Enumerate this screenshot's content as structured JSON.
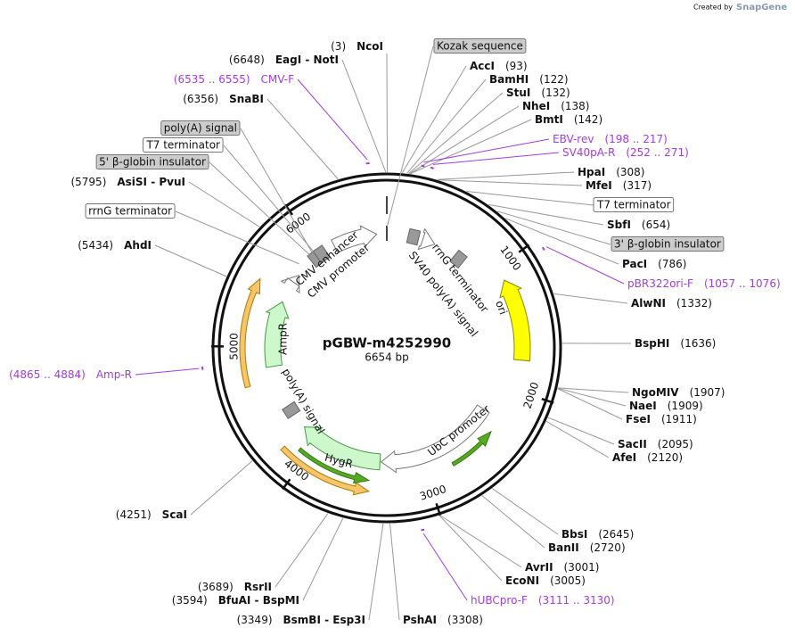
{
  "title": "pGBW-m4252990",
  "length": {
    "value": 6654,
    "label": "6654 bp"
  },
  "watermark": {
    "prefix": "Created by",
    "brand": "SnapGene"
  },
  "ring_ticks": [
    1000,
    2000,
    3000,
    4000,
    5000,
    6000
  ],
  "sites": [
    {
      "name": "NcoI",
      "position": {
        "value": 3,
        "label": "(3)"
      }
    },
    {
      "name": "EagI - NotI",
      "position": {
        "value": 6648,
        "label": "(6648)"
      }
    },
    {
      "name": "SnaBI",
      "position": {
        "value": 6356,
        "label": "(6356)"
      }
    },
    {
      "name": "AsiSI - PvuI",
      "position": {
        "value": 5795,
        "label": "(5795)"
      }
    },
    {
      "name": "AhdI",
      "position": {
        "value": 5434,
        "label": "(5434)"
      }
    },
    {
      "name": "ScaI",
      "position": {
        "value": 4251,
        "label": "(4251)"
      }
    },
    {
      "name": "RsrII",
      "position": {
        "value": 3689,
        "label": "(3689)"
      }
    },
    {
      "name": "BfuAI - BspMI",
      "position": {
        "value": 3594,
        "label": "(3594)"
      }
    },
    {
      "name": "BsmBI - Esp3I",
      "position": {
        "value": 3349,
        "label": "(3349)"
      }
    },
    {
      "name": "AccI",
      "position": {
        "value": 93,
        "label": "(93)"
      }
    },
    {
      "name": "BamHI",
      "position": {
        "value": 122,
        "label": "(122)"
      }
    },
    {
      "name": "StuI",
      "position": {
        "value": 132,
        "label": "(132)"
      }
    },
    {
      "name": "NheI",
      "position": {
        "value": 138,
        "label": "(138)"
      }
    },
    {
      "name": "BmtI",
      "position": {
        "value": 142,
        "label": "(142)"
      }
    },
    {
      "name": "HpaI",
      "position": {
        "value": 308,
        "label": "(308)"
      }
    },
    {
      "name": "MfeI",
      "position": {
        "value": 317,
        "label": "(317)"
      }
    },
    {
      "name": "SbfI",
      "position": {
        "value": 654,
        "label": "(654)"
      }
    },
    {
      "name": "PacI",
      "position": {
        "value": 786,
        "label": "(786)"
      }
    },
    {
      "name": "AlwNI",
      "position": {
        "value": 1332,
        "label": "(1332)"
      }
    },
    {
      "name": "BspHI",
      "position": {
        "value": 1636,
        "label": "(1636)"
      }
    },
    {
      "name": "NgoMIV",
      "position": {
        "value": 1907,
        "label": "(1907)"
      }
    },
    {
      "name": "NaeI",
      "position": {
        "value": 1909,
        "label": "(1909)"
      }
    },
    {
      "name": "FseI",
      "position": {
        "value": 1911,
        "label": "(1911)"
      }
    },
    {
      "name": "SacII",
      "position": {
        "value": 2095,
        "label": "(2095)"
      }
    },
    {
      "name": "AfeI",
      "position": {
        "value": 2120,
        "label": "(2120)"
      }
    },
    {
      "name": "BbsI",
      "position": {
        "value": 2645,
        "label": "(2645)"
      }
    },
    {
      "name": "BanII",
      "position": {
        "value": 2720,
        "label": "(2720)"
      }
    },
    {
      "name": "AvrII",
      "position": {
        "value": 3001,
        "label": "(3001)"
      }
    },
    {
      "name": "EcoNI",
      "position": {
        "value": 3005,
        "label": "(3005)"
      }
    },
    {
      "name": "PshAI",
      "position": {
        "value": 3308,
        "label": "(3308)"
      }
    }
  ],
  "primers": [
    {
      "name": "CMV-F",
      "range": {
        "value": [
          6535,
          6555
        ],
        "label": "(6535 .. 6555)"
      }
    },
    {
      "name": "EBV-rev",
      "range": {
        "value": [
          198,
          217
        ],
        "label": "(198 .. 217)"
      }
    },
    {
      "name": "SV40pA-R",
      "range": {
        "value": [
          252,
          271
        ],
        "label": "(252 .. 271)"
      }
    },
    {
      "name": "pBR322ori-F",
      "range": {
        "value": [
          1057,
          1076
        ],
        "label": "(1057 .. 1076)"
      }
    },
    {
      "name": "Amp-R",
      "range": {
        "value": [
          4865,
          4884
        ],
        "label": "(4865 .. 4884)"
      }
    },
    {
      "name": "hUBCpro-F",
      "range": {
        "value": [
          3111,
          3130
        ],
        "label": "(3111 .. 3130)"
      }
    }
  ],
  "feature_labels": [
    "Kozak sequence",
    "poly(A) signal",
    "T7 terminator",
    "5' β-globin insulator",
    "rrnG terminator",
    "T7 terminator",
    "3' β-globin insulator"
  ],
  "map_features": [
    "CMV enhancer",
    "CMV promoter",
    "SV40 poly(A) signal",
    "rrnG terminator",
    "ori",
    "AmpR",
    "poly(A) signal",
    "HygR",
    "UbC promoter"
  ]
}
